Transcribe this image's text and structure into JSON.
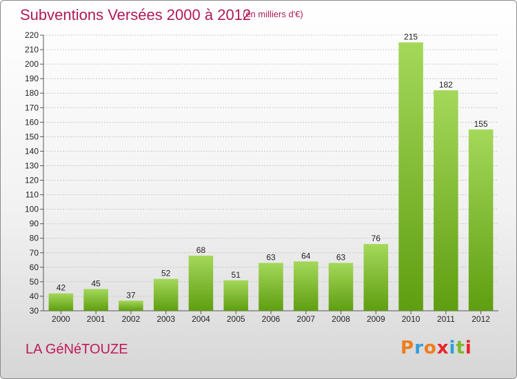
{
  "header": {
    "title": "Subventions Versées 2000 à 2012",
    "subtitle": "(en milliers d'€)"
  },
  "footer": {
    "commune": "LA GéNéTOUZE",
    "logo_text": "Proxiti",
    "logo_colors": [
      "#ef7d1a",
      "#2f9fd8",
      "#ef7d1a",
      "#e8232a",
      "#2f9fd8",
      "#7ab928",
      "#e8232a"
    ]
  },
  "colors": {
    "title": "#b0195a",
    "bar_top": "#a4d85a",
    "bar_bottom": "#5f9e10",
    "grid": "#c8c8c8"
  },
  "chart_data": {
    "type": "bar",
    "title": "Subventions Versées 2000 à 2012",
    "subtitle": "(en milliers d'€)",
    "xlabel": "",
    "ylabel": "",
    "categories": [
      "2000",
      "2001",
      "2002",
      "2003",
      "2004",
      "2005",
      "2006",
      "2007",
      "2008",
      "2009",
      "2010",
      "2011",
      "2012"
    ],
    "values": [
      42,
      45,
      37,
      52,
      68,
      51,
      63,
      64,
      63,
      76,
      215,
      182,
      155
    ],
    "ylim": [
      30,
      220
    ],
    "ytick_step": 10,
    "grid": true,
    "legend": "none"
  }
}
